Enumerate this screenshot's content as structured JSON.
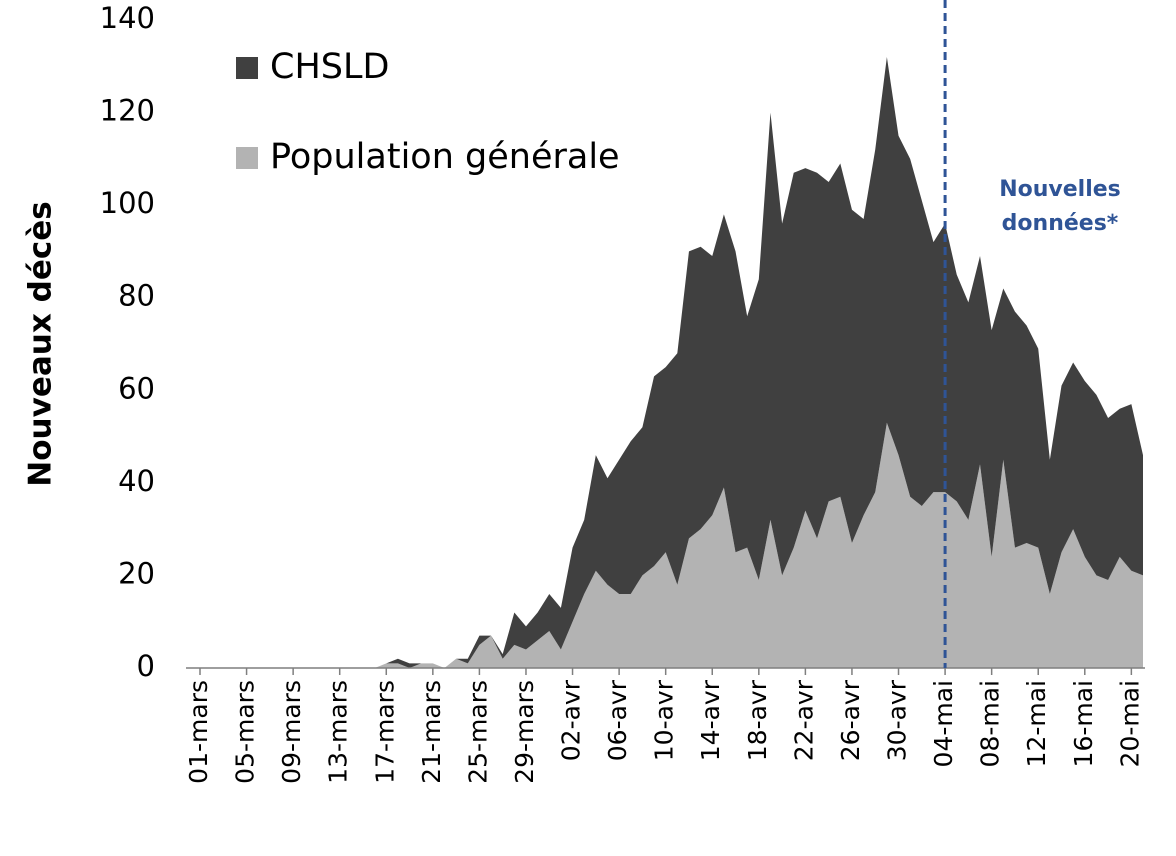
{
  "chart_data": {
    "type": "stacked_area",
    "y_label": "Nouveaux décès",
    "categories": [
      "01-mars",
      null,
      null,
      null,
      "05-mars",
      null,
      null,
      null,
      "09-mars",
      null,
      null,
      null,
      "13-mars",
      null,
      null,
      null,
      "17-mars",
      null,
      null,
      null,
      "21-mars",
      null,
      null,
      null,
      "25-mars",
      null,
      null,
      null,
      "29-mars",
      null,
      null,
      null,
      "02-avr",
      null,
      null,
      null,
      "06-avr",
      null,
      null,
      null,
      "10-avr",
      null,
      null,
      null,
      "14-avr",
      null,
      null,
      null,
      "18-avr",
      null,
      null,
      null,
      "22-avr",
      null,
      null,
      null,
      "26-avr",
      null,
      null,
      null,
      "30-avr",
      null,
      null,
      null,
      "04-mai",
      null,
      null,
      null,
      "08-mai",
      null,
      null,
      null,
      "12-mai",
      null,
      null,
      null,
      "16-mai",
      null,
      null,
      null,
      "20-mai",
      null
    ],
    "series": [
      {
        "name": "CHSLD",
        "color": "#404040",
        "values": [
          0,
          0,
          0,
          0,
          0,
          0,
          0,
          0,
          0,
          0,
          0,
          0,
          0,
          0,
          0,
          0,
          0,
          1,
          1,
          0,
          0,
          0,
          0,
          1,
          2,
          0,
          1,
          7,
          5,
          6,
          8,
          9,
          16,
          16,
          25,
          23,
          29,
          33,
          32,
          41,
          40,
          50,
          62,
          61,
          56,
          59,
          65,
          50,
          65,
          88,
          76,
          81,
          74,
          79,
          69,
          72,
          72,
          64,
          74,
          79,
          69,
          73,
          66,
          54,
          58,
          49,
          47,
          45,
          49,
          37,
          51,
          47,
          43,
          29,
          36,
          36,
          38,
          39,
          35,
          32,
          36,
          26
        ]
      },
      {
        "name": "Population générale",
        "color": "#b3b3b3",
        "values": [
          0,
          0,
          0,
          0,
          0,
          0,
          0,
          0,
          0,
          0,
          0,
          0,
          0,
          0,
          0,
          0,
          1,
          1,
          0,
          1,
          1,
          0,
          2,
          1,
          5,
          7,
          2,
          5,
          4,
          6,
          8,
          4,
          10,
          16,
          21,
          18,
          16,
          16,
          20,
          22,
          25,
          18,
          28,
          30,
          33,
          39,
          25,
          26,
          19,
          32,
          20,
          26,
          34,
          28,
          36,
          37,
          27,
          33,
          38,
          53,
          46,
          37,
          35,
          38,
          38,
          36,
          32,
          44,
          24,
          45,
          26,
          27,
          26,
          16,
          25,
          30,
          24,
          20,
          19,
          24,
          21,
          20
        ]
      }
    ],
    "ylim": [
      0,
      140
    ],
    "yticks": [
      0,
      20,
      40,
      60,
      80,
      100,
      120,
      140
    ],
    "grid": false,
    "legend": "top-left",
    "annotation": {
      "x": "04-mai",
      "lines": [
        "Nouvelles",
        "données*"
      ],
      "color": "#2f5496"
    }
  }
}
